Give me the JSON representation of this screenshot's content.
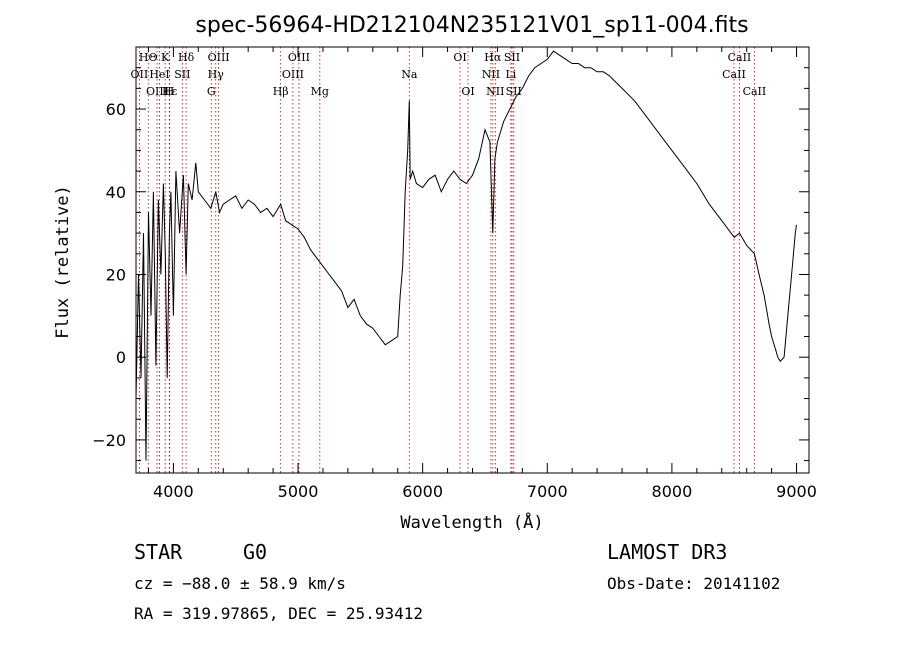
{
  "chart_data": {
    "type": "line",
    "title": "spec-56964-HD212104N235121V01_sp11-004.fits",
    "xlabel": "Wavelength (Å)",
    "ylabel": "Flux (relative)",
    "xlim": [
      3700,
      9100
    ],
    "ylim": [
      -28,
      75
    ],
    "xticks": [
      4000,
      5000,
      6000,
      7000,
      8000,
      9000
    ],
    "xtick_labels": [
      "4000",
      "5000",
      "6000",
      "7000",
      "8000",
      "9000"
    ],
    "yticks": [
      -20,
      0,
      20,
      40,
      60
    ],
    "ytick_labels": [
      "−20",
      "0",
      "20",
      "40",
      "60"
    ],
    "spectrum": {
      "x": [
        3700,
        3720,
        3740,
        3760,
        3780,
        3800,
        3820,
        3840,
        3860,
        3880,
        3900,
        3920,
        3935,
        3950,
        3968,
        3980,
        4000,
        4020,
        4050,
        4080,
        4102,
        4120,
        4150,
        4180,
        4200,
        4250,
        4300,
        4340,
        4370,
        4400,
        4450,
        4500,
        4550,
        4600,
        4650,
        4700,
        4750,
        4800,
        4861,
        4900,
        4950,
        5000,
        5050,
        5100,
        5150,
        5200,
        5250,
        5300,
        5350,
        5400,
        5450,
        5500,
        5550,
        5600,
        5650,
        5700,
        5750,
        5800,
        5820,
        5840,
        5860,
        5880,
        5893,
        5900,
        5920,
        5950,
        6000,
        6050,
        6100,
        6150,
        6200,
        6250,
        6300,
        6350,
        6400,
        6450,
        6500,
        6540,
        6563,
        6580,
        6600,
        6650,
        6700,
        6750,
        6800,
        6850,
        6900,
        6950,
        7000,
        7050,
        7100,
        7150,
        7200,
        7250,
        7300,
        7350,
        7400,
        7450,
        7500,
        7600,
        7700,
        7800,
        7900,
        8000,
        8100,
        8200,
        8300,
        8400,
        8500,
        8542,
        8600,
        8662,
        8700,
        8740,
        8780,
        8800,
        8830,
        8850,
        8870,
        8900,
        8930,
        8960,
        8990,
        9000
      ],
      "y": [
        -10,
        20,
        -5,
        30,
        -25,
        35,
        10,
        40,
        -2,
        38,
        20,
        42,
        25,
        -5,
        30,
        40,
        10,
        45,
        30,
        44,
        20,
        42,
        38,
        47,
        40,
        38,
        36,
        40,
        35,
        37,
        38,
        39,
        36,
        38,
        37,
        35,
        36,
        34,
        37,
        33,
        32,
        31,
        29,
        26,
        24,
        22,
        20,
        18,
        16,
        12,
        14,
        10,
        8,
        7,
        5,
        3,
        4,
        5,
        15,
        22,
        40,
        50,
        62,
        43,
        45,
        42,
        41,
        43,
        44,
        40,
        43,
        45,
        43,
        42,
        44,
        48,
        55,
        52,
        30,
        48,
        52,
        57,
        60,
        63,
        65,
        68,
        70,
        71,
        72,
        74,
        73,
        72,
        71,
        71,
        70,
        70,
        69,
        69,
        68,
        65,
        62,
        58,
        54,
        50,
        46,
        42,
        37,
        33,
        29,
        30,
        27,
        25,
        20,
        15,
        8,
        5,
        2,
        0,
        -1,
        0,
        10,
        20,
        30,
        32
      ]
    },
    "spectral_lines": [
      {
        "label": "HΘ",
        "x": 3798,
        "row": 0
      },
      {
        "label": "K",
        "x": 3934,
        "row": 0
      },
      {
        "label": "Hδ",
        "x": 4102,
        "row": 0
      },
      {
        "label": "OIII",
        "x": 4363,
        "row": 0
      },
      {
        "label": "OIII",
        "x": 5007,
        "row": 0
      },
      {
        "label": "OI",
        "x": 6300,
        "row": 0
      },
      {
        "label": "Hα",
        "x": 6563,
        "row": 0
      },
      {
        "label": "SII",
        "x": 6717,
        "row": 0
      },
      {
        "label": "CaII",
        "x": 8542,
        "row": 0
      },
      {
        "label": "OII",
        "x": 3727,
        "row": 1
      },
      {
        "label": "HeI",
        "x": 3889,
        "row": 1
      },
      {
        "label": "SII",
        "x": 4072,
        "row": 1
      },
      {
        "label": "Hγ",
        "x": 4340,
        "row": 1
      },
      {
        "label": "OIII",
        "x": 4959,
        "row": 1
      },
      {
        "label": "Na",
        "x": 5893,
        "row": 1
      },
      {
        "label": "NII",
        "x": 6548,
        "row": 1
      },
      {
        "label": "Li",
        "x": 6708,
        "row": 1
      },
      {
        "label": "CaII",
        "x": 8498,
        "row": 1
      },
      {
        "label": "OIII",
        "x": 3869,
        "row": 2
      },
      {
        "label": "Hε",
        "x": 3970,
        "row": 2
      },
      {
        "label": "H",
        "x": 3968,
        "row": 2
      },
      {
        "label": "G",
        "x": 4304,
        "row": 2
      },
      {
        "label": "Hβ",
        "x": 4861,
        "row": 2
      },
      {
        "label": "Mg",
        "x": 5175,
        "row": 2
      },
      {
        "label": "OI",
        "x": 6364,
        "row": 2
      },
      {
        "label": "NII",
        "x": 6583,
        "row": 2
      },
      {
        "label": "SII",
        "x": 6731,
        "row": 2
      },
      {
        "label": "CaII",
        "x": 8662,
        "row": 2
      }
    ]
  },
  "info": {
    "object_class": "STAR",
    "subclass": "G0",
    "survey": "LAMOST DR3",
    "cz": "cz = −88.0 ± 58.9 km/s",
    "obs_date": "Obs-Date: 20141102",
    "coords": "RA = 319.97865, DEC =  25.93412"
  },
  "colors": {
    "spectrum": "#000000",
    "line_marker": "#c00000",
    "axes": "#000000"
  }
}
